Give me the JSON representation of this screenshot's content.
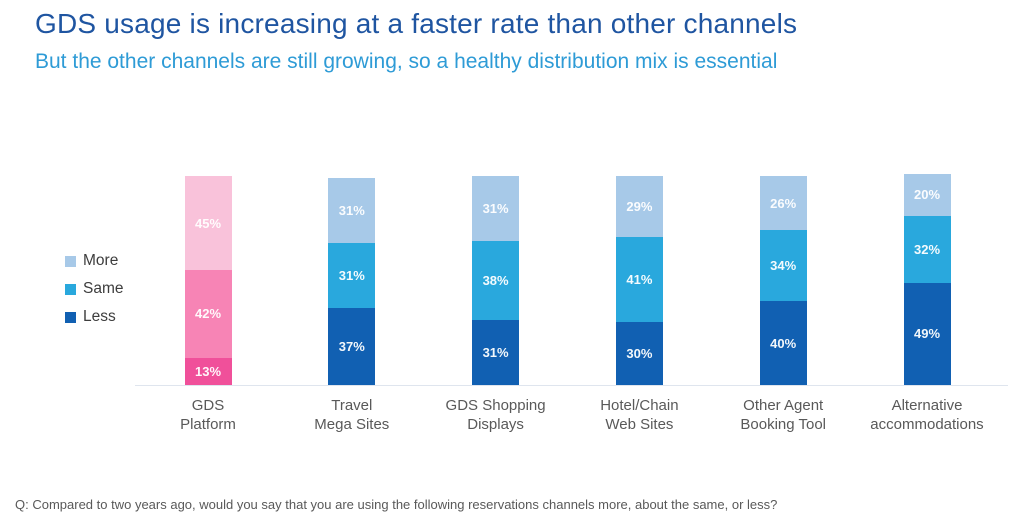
{
  "header": {
    "title": "GDS usage is increasing at a faster rate than other channels",
    "subtitle": "But the other channels are still growing, so a healthy distribution mix is essential",
    "title_color": "#1f55a1",
    "subtitle_color": "#2e9bd6"
  },
  "legend": {
    "position": "left",
    "items": [
      {
        "label": "More",
        "color": "#a7c9e8"
      },
      {
        "label": "Same",
        "color": "#29a8dd"
      },
      {
        "label": "Less",
        "color": "#1160b2"
      }
    ]
  },
  "chart_data": {
    "type": "bar",
    "stacked": true,
    "percent": true,
    "title": "",
    "xlabel": "",
    "ylabel": "",
    "ylim": [
      0,
      100
    ],
    "grid": false,
    "legend_position": "left",
    "value_suffix": "%",
    "categories": [
      "GDS Platform",
      "Travel Mega Sites",
      "GDS Shopping Displays",
      "Hotel/Chain Web Sites",
      "Other Agent Booking Tool",
      "Alternative accommodations"
    ],
    "category_lines": [
      [
        "GDS",
        "Platform"
      ],
      [
        "Travel",
        "Mega Sites"
      ],
      [
        "GDS Shopping",
        "Displays"
      ],
      [
        "Hotel/Chain",
        "Web Sites"
      ],
      [
        "Other Agent",
        "Booking Tool"
      ],
      [
        "Alternative",
        "accommodations"
      ]
    ],
    "series": [
      {
        "name": "More",
        "values": [
          45,
          31,
          31,
          29,
          26,
          20
        ],
        "colors": [
          "#f9c2da",
          "#a7c9e8",
          "#a7c9e8",
          "#a7c9e8",
          "#a7c9e8",
          "#a7c9e8"
        ]
      },
      {
        "name": "Same",
        "values": [
          42,
          31,
          38,
          41,
          34,
          32
        ],
        "colors": [
          "#f784b5",
          "#29a8dd",
          "#29a8dd",
          "#29a8dd",
          "#29a8dd",
          "#29a8dd"
        ]
      },
      {
        "name": "Less",
        "values": [
          13,
          37,
          31,
          30,
          40,
          49
        ],
        "colors": [
          "#f0509a",
          "#1160b2",
          "#1160b2",
          "#1160b2",
          "#1160b2",
          "#1160b2"
        ]
      }
    ]
  },
  "footer": {
    "question": "Q: Compared to two years ago, would you say that you are using the following reservations channels more, about the same, or less?"
  }
}
